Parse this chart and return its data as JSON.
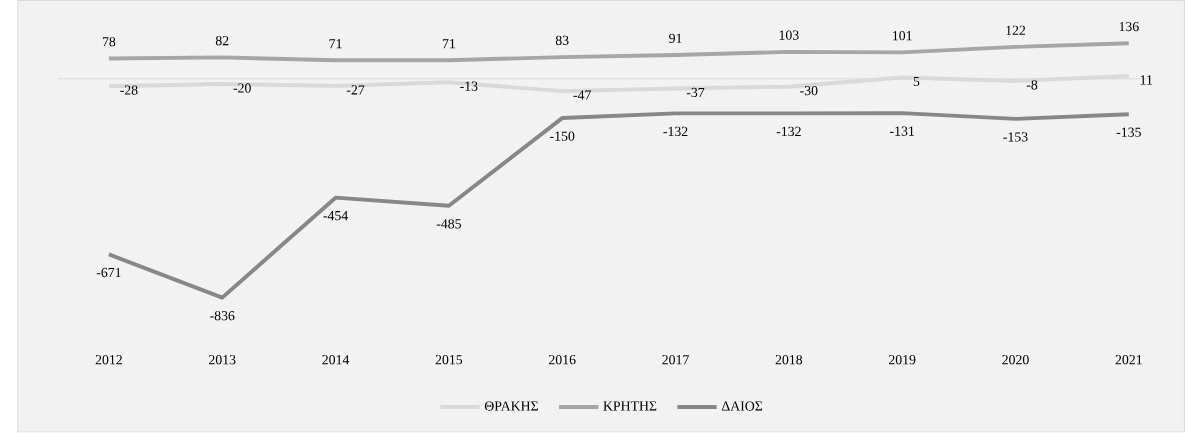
{
  "chart_data": {
    "type": "line",
    "categories": [
      "2012",
      "2013",
      "2014",
      "2015",
      "2016",
      "2017",
      "2018",
      "2019",
      "2020",
      "2021"
    ],
    "series": [
      {
        "name": "ΘΡΑΚΗΣ",
        "color": "#d9d9d9",
        "values": [
          -28,
          -20,
          -27,
          -13,
          -47,
          -37,
          -30,
          5,
          -8,
          11
        ]
      },
      {
        "name": "ΚΡΗΤΗΣ",
        "color": "#a6a6a6",
        "values": [
          78,
          82,
          71,
          71,
          83,
          91,
          103,
          101,
          122,
          136
        ]
      },
      {
        "name": "ΔΑΙΟΣ",
        "color": "#878787",
        "values": [
          -671,
          -836,
          -454,
          -485,
          -150,
          -132,
          -132,
          -131,
          -153,
          -135
        ]
      }
    ],
    "data_labels": true,
    "legend": "bottom",
    "tick_labels": "x"
  }
}
